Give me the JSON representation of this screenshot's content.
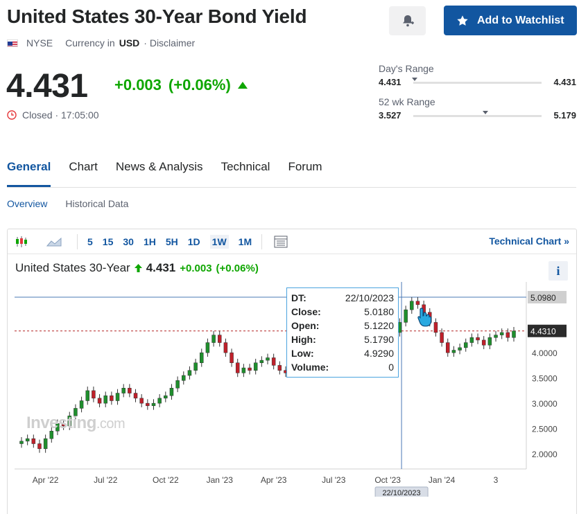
{
  "header": {
    "title": "United States 30-Year Bond Yield",
    "watchlist_label": "Add to Watchlist",
    "exchange": "NYSE",
    "currency_prefix": "Currency in",
    "currency": "USD",
    "disclaimer": "· Disclaimer"
  },
  "quote": {
    "price": "4.431",
    "change": "+0.003",
    "change_pct": "(+0.06%)",
    "status": "Closed · 17:05:00",
    "up_color": "#0ea600"
  },
  "ranges": {
    "day": {
      "label": "Day's Range",
      "low": "4.431",
      "high": "4.431"
    },
    "week52": {
      "label": "52 wk Range",
      "low": "3.527",
      "high": "5.179"
    }
  },
  "tabs": [
    "General",
    "Chart",
    "News & Analysis",
    "Technical",
    "Forum"
  ],
  "subtabs": [
    "Overview",
    "Historical Data"
  ],
  "chart": {
    "timeframes": [
      "5",
      "15",
      "30",
      "1H",
      "5H",
      "1D",
      "1W",
      "1M"
    ],
    "selected_timeframe": "1W",
    "tech_link": "Technical Chart",
    "instrument": "United States 30-Year",
    "price": "4.431",
    "change": "+0.003",
    "change_pct": "(+0.06%)",
    "info": "i",
    "watermark_main": "Investing",
    "watermark_suffix": ".com",
    "tooltip": {
      "rows": [
        {
          "k": "DT:",
          "v": "22/10/2023"
        },
        {
          "k": "Close:",
          "v": "5.0180"
        },
        {
          "k": "Open:",
          "v": "5.1220"
        },
        {
          "k": "High:",
          "v": "5.1790"
        },
        {
          "k": "Low:",
          "v": "4.9290"
        },
        {
          "k": "Volume:",
          "v": "0"
        }
      ]
    },
    "crosshair_date": "22/10/2023",
    "crosshair_price": "5.0980",
    "last_price_label": "4.4310"
  },
  "chart_data": {
    "type": "candlestick",
    "x_ticks": [
      "Apr '22",
      "Jul '22",
      "Oct '22",
      "Jan '23",
      "Apr '23",
      "Jul '23",
      "Oct '23",
      "Jan '24",
      "3"
    ],
    "y_ticks": [
      "2.0000",
      "2.5000",
      "3.0000",
      "3.5000",
      "4.0000"
    ],
    "ylim": [
      1.7,
      5.4
    ],
    "candles": [
      2.25,
      2.3,
      2.2,
      2.1,
      2.3,
      2.45,
      2.6,
      2.55,
      2.75,
      2.9,
      3.05,
      3.25,
      3.1,
      3.0,
      3.15,
      3.05,
      3.2,
      3.3,
      3.2,
      3.1,
      3.0,
      2.95,
      3.0,
      3.1,
      3.15,
      3.3,
      3.45,
      3.55,
      3.65,
      3.8,
      4.0,
      4.2,
      4.35,
      4.2,
      4.0,
      3.8,
      3.6,
      3.7,
      3.65,
      3.8,
      3.85,
      3.9,
      3.75,
      3.65,
      3.6,
      3.65,
      3.8,
      3.9,
      3.95,
      3.85,
      3.7,
      3.65,
      3.6,
      3.7,
      3.75,
      3.8,
      3.85,
      3.9,
      3.95,
      4.0,
      4.05,
      4.2,
      4.4,
      4.6,
      4.85,
      5.02,
      4.95,
      4.8,
      4.6,
      4.4,
      4.2,
      4.0,
      4.05,
      4.1,
      4.2,
      4.3,
      4.25,
      4.15,
      4.3,
      4.35,
      4.4,
      4.3,
      4.43
    ]
  }
}
